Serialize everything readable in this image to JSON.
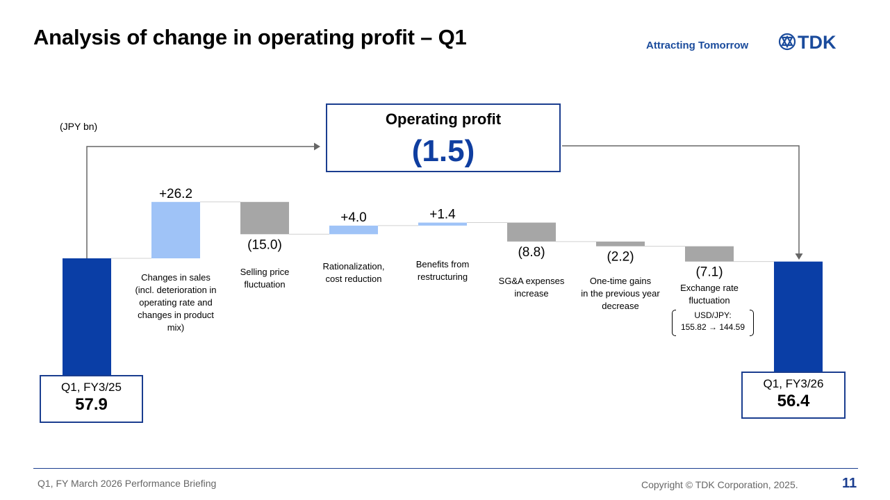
{
  "header": {
    "title": "Analysis of change in operating profit – Q1",
    "tagline": "Attracting Tomorrow",
    "logo_text": "TDK"
  },
  "unit_label": "(JPY bn)",
  "summary": {
    "title": "Operating profit",
    "value": "(1.5)"
  },
  "start_box": {
    "label": "Q1, FY3/25",
    "value": "57.9"
  },
  "end_box": {
    "label": "Q1, FY3/26",
    "value": "56.4"
  },
  "fx_note": {
    "line1": "USD/JPY:",
    "line2": "155.82 → 144.59"
  },
  "footer": {
    "left": "Q1, FY March 2026 Performance Briefing",
    "right": "Copyright © TDK Corporation, 2025.",
    "page": "11"
  },
  "colors": {
    "total": "#0a3ea6",
    "increase": "#9fc3f7",
    "decrease": "#a6a6a6",
    "accent": "#1a4b9c"
  },
  "chart_data": {
    "type": "bar",
    "subtype": "waterfall",
    "unit": "JPY bn",
    "steps": [
      {
        "kind": "total",
        "value": 57.9
      },
      {
        "kind": "delta",
        "value": 26.2,
        "label": "+26.2",
        "category": [
          "Changes in sales",
          "(incl. deterioration in",
          "operating rate and",
          "changes in product",
          "mix)"
        ]
      },
      {
        "kind": "delta",
        "value": -15.0,
        "label": "(15.0)",
        "category": [
          "Selling price",
          "fluctuation"
        ]
      },
      {
        "kind": "delta",
        "value": 4.0,
        "label": "+4.0",
        "category": [
          "Rationalization,",
          "cost reduction"
        ]
      },
      {
        "kind": "delta",
        "value": 1.4,
        "label": "+1.4",
        "category": [
          "Benefits from",
          "restructuring"
        ]
      },
      {
        "kind": "delta",
        "value": -8.8,
        "label": "(8.8)",
        "category": [
          "SG&A expenses",
          "increase"
        ]
      },
      {
        "kind": "delta",
        "value": -2.2,
        "label": "(2.2)",
        "category": [
          "One-time gains",
          "in the previous year",
          "decrease"
        ]
      },
      {
        "kind": "delta",
        "value": -7.1,
        "label": "(7.1)",
        "category": [
          "Exchange rate",
          "fluctuation"
        ]
      },
      {
        "kind": "total",
        "value": 56.4
      }
    ]
  }
}
